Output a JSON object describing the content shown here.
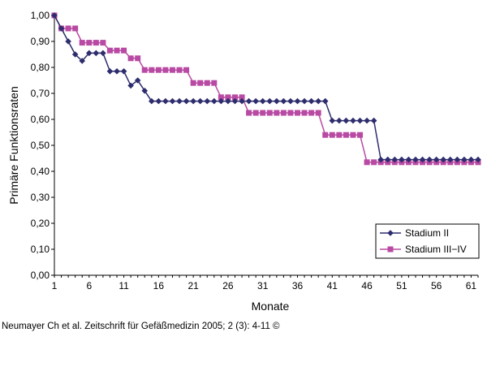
{
  "chart_data": {
    "type": "line",
    "xlabel": "Monate",
    "ylabel": "Primäre Funktionsraten",
    "xlim": [
      1,
      62
    ],
    "ylim": [
      0,
      1
    ],
    "x_ticks": [
      1,
      6,
      11,
      16,
      21,
      26,
      31,
      36,
      41,
      46,
      51,
      56,
      61
    ],
    "y_ticks": [
      "0,00",
      "0,10",
      "0,20",
      "0,30",
      "0,40",
      "0,50",
      "0,60",
      "0,70",
      "0,80",
      "0,90",
      "1,00"
    ],
    "legend_position": "bottom-right",
    "series": [
      {
        "name": "Stadium II",
        "color": "#2e2d6e",
        "marker": "diamond",
        "x": [
          1,
          2,
          3,
          4,
          5,
          6,
          7,
          8,
          9,
          10,
          11,
          12,
          13,
          14,
          15,
          16,
          17,
          18,
          19,
          20,
          21,
          22,
          23,
          24,
          25,
          26,
          27,
          28,
          29,
          30,
          31,
          32,
          33,
          34,
          35,
          36,
          37,
          38,
          39,
          40,
          41,
          42,
          43,
          44,
          45,
          46,
          47,
          48,
          49,
          50,
          51,
          52,
          53,
          54,
          55,
          56,
          57,
          58,
          59,
          60,
          61,
          62
        ],
        "values": [
          1.0,
          0.95,
          0.9,
          0.85,
          0.825,
          0.855,
          0.855,
          0.855,
          0.785,
          0.785,
          0.785,
          0.73,
          0.75,
          0.71,
          0.67,
          0.67,
          0.67,
          0.67,
          0.67,
          0.67,
          0.67,
          0.67,
          0.67,
          0.67,
          0.67,
          0.67,
          0.67,
          0.67,
          0.67,
          0.67,
          0.67,
          0.67,
          0.67,
          0.67,
          0.67,
          0.67,
          0.67,
          0.67,
          0.67,
          0.67,
          0.595,
          0.595,
          0.595,
          0.595,
          0.595,
          0.595,
          0.595,
          0.445,
          0.445,
          0.445,
          0.445,
          0.445,
          0.445,
          0.445,
          0.445,
          0.445,
          0.445,
          0.445,
          0.445,
          0.445,
          0.445,
          0.445
        ]
      },
      {
        "name": "Stadium III−IV",
        "color": "#b84aa3",
        "marker": "square",
        "x": [
          1,
          2,
          3,
          4,
          5,
          6,
          7,
          8,
          9,
          10,
          11,
          12,
          13,
          14,
          15,
          16,
          17,
          18,
          19,
          20,
          21,
          22,
          23,
          24,
          25,
          26,
          27,
          28,
          29,
          30,
          31,
          32,
          33,
          34,
          35,
          36,
          37,
          38,
          39,
          40,
          41,
          42,
          43,
          44,
          45,
          46,
          47,
          48,
          49,
          50,
          51,
          52,
          53,
          54,
          55,
          56,
          57,
          58,
          59,
          60,
          61,
          62
        ],
        "values": [
          1.0,
          0.95,
          0.95,
          0.95,
          0.895,
          0.895,
          0.895,
          0.895,
          0.865,
          0.865,
          0.865,
          0.835,
          0.835,
          0.79,
          0.79,
          0.79,
          0.79,
          0.79,
          0.79,
          0.79,
          0.74,
          0.74,
          0.74,
          0.74,
          0.685,
          0.685,
          0.685,
          0.685,
          0.625,
          0.625,
          0.625,
          0.625,
          0.625,
          0.625,
          0.625,
          0.625,
          0.625,
          0.625,
          0.625,
          0.54,
          0.54,
          0.54,
          0.54,
          0.54,
          0.54,
          0.435,
          0.435,
          0.435,
          0.435,
          0.435,
          0.435,
          0.435,
          0.435,
          0.435,
          0.435,
          0.435,
          0.435,
          0.435,
          0.435,
          0.435,
          0.435,
          0.435
        ]
      }
    ]
  },
  "caption": "Neumayer Ch et al. Zeitschrift für Gefäßmedizin 2005; 2 (3): 4-11 ©"
}
